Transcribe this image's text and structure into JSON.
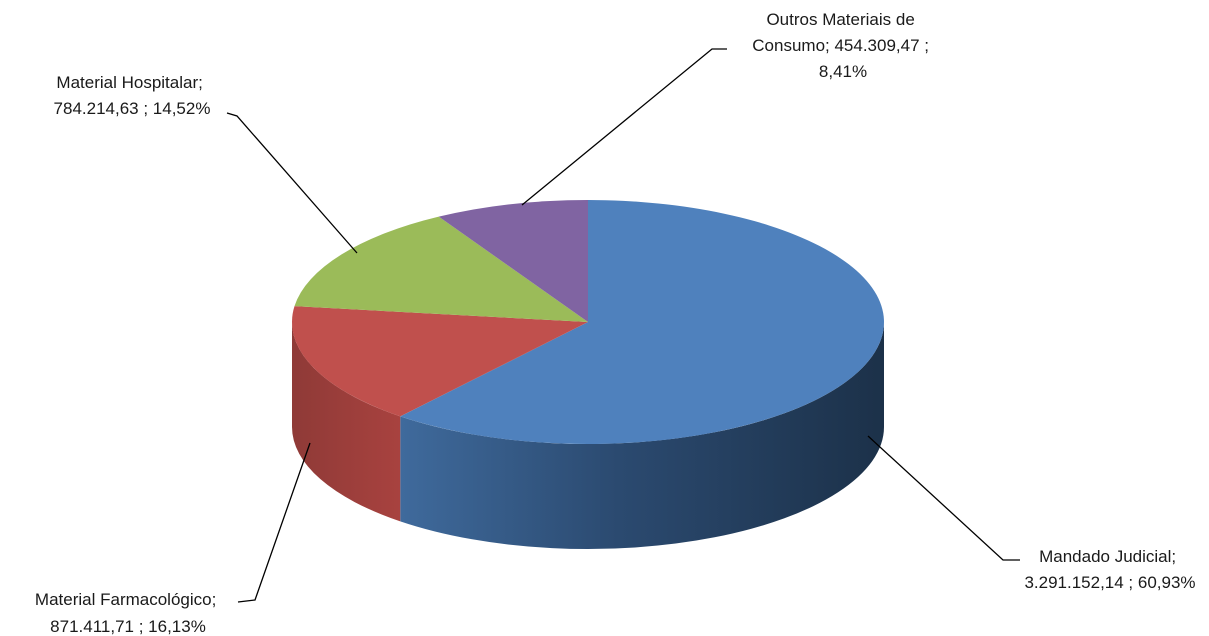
{
  "chart_data": {
    "type": "pie",
    "style": "3d",
    "title": "",
    "slices": [
      {
        "name": "Mandado Judicial",
        "value": 3291152.14,
        "value_label": "3.291.152,14",
        "percent_label": "60,93%",
        "color": "#4f81bd"
      },
      {
        "name": "Material Farmacológico",
        "value": 871411.71,
        "value_label": "871.411,71",
        "percent_label": "16,13%",
        "color": "#c0504d"
      },
      {
        "name": "Material Hospitalar",
        "value": 784214.63,
        "value_label": "784.214,63",
        "percent_label": "14,52%",
        "color": "#9bbb59"
      },
      {
        "name": "Outros Materiais de Consumo",
        "value": 454309.47,
        "value_label": "454.309,47",
        "percent_label": "8,41%",
        "color": "#8064a2"
      }
    ],
    "data_labels": [
      {
        "lines": [
          "Mandado Judicial;",
          "3.291.152,14 ; 60,93%"
        ]
      },
      {
        "lines": [
          "Material Farmacológico;",
          "871.411,71 ; 16,13%"
        ]
      },
      {
        "lines": [
          "Material Hospitalar;",
          "784.214,63 ; 14,52%"
        ]
      },
      {
        "lines": [
          "Outros Materiais de",
          "Consumo;  454.309,47 ;",
          "8,41%"
        ]
      }
    ]
  }
}
